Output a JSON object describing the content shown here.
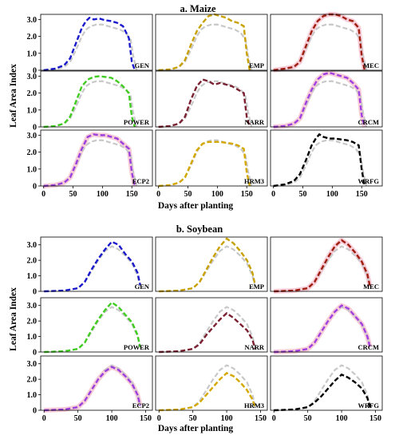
{
  "figure": {
    "panels": [
      {
        "title": "a. Maize",
        "ylabel": "Leaf Area Index",
        "xlabel": "Days after planting"
      },
      {
        "title": "b. Soybean",
        "ylabel": "Leaf Area Index",
        "xlabel": "Days after planting"
      }
    ]
  },
  "colors": {
    "baseline": "#c8c8c8",
    "GEN": "#1a1acc",
    "EMP": "#c8a000",
    "MEC": "#a01e10",
    "POWER": "#40cc20",
    "NARR": "#7a2030",
    "CRCM": "#a040e0",
    "ECP2": "#9a40dd",
    "HRM3": "#d4a800",
    "WRFG": "#000000",
    "band": "#f4b8c8"
  },
  "chart_data": [
    {
      "type": "line",
      "title": "a. Maize",
      "xlabel": "Days after planting",
      "ylabel": "Leaf Area Index",
      "xlim": [
        -5,
        185
      ],
      "ylim": [
        0,
        3.3
      ],
      "xticks": [
        "0",
        "50",
        "100",
        "150"
      ],
      "xtick_values": [
        0,
        50,
        100,
        150
      ],
      "yticks": [
        "0",
        "1.0",
        "2.0",
        "3.0"
      ],
      "ytick_values": [
        0,
        1,
        2,
        3
      ],
      "grid": false,
      "baseline": {
        "x": [
          0,
          20,
          35,
          45,
          55,
          65,
          72,
          80,
          90,
          100,
          110,
          120,
          130,
          140,
          148,
          152,
          158
        ],
        "y": [
          0,
          0.05,
          0.2,
          0.5,
          1.2,
          2.0,
          2.4,
          2.6,
          2.7,
          2.7,
          2.6,
          2.5,
          2.4,
          2.2,
          1.8,
          0.9,
          0
        ]
      },
      "series": [
        {
          "name": "GEN",
          "x": [
            0,
            20,
            35,
            45,
            55,
            65,
            72,
            78,
            85,
            95,
            105,
            115,
            125,
            135,
            145,
            150,
            155
          ],
          "y": [
            0,
            0.1,
            0.3,
            0.7,
            1.6,
            2.5,
            2.9,
            3.1,
            3.0,
            3.05,
            2.95,
            2.9,
            2.8,
            2.6,
            1.9,
            0.5,
            0
          ]
        },
        {
          "name": "EMP",
          "x": [
            0,
            20,
            35,
            45,
            55,
            65,
            75,
            85,
            95,
            105,
            115,
            125,
            135,
            145,
            150,
            155
          ],
          "y": [
            0,
            0.05,
            0.2,
            0.6,
            1.5,
            2.3,
            2.8,
            3.2,
            3.3,
            3.2,
            3.1,
            2.9,
            2.8,
            2.6,
            1.0,
            0
          ]
        },
        {
          "name": "MEC",
          "x": [
            0,
            20,
            35,
            45,
            55,
            65,
            75,
            85,
            95,
            105,
            115,
            125,
            135,
            145,
            150,
            155
          ],
          "y": [
            0,
            0.1,
            0.2,
            0.5,
            1.4,
            2.3,
            2.9,
            3.2,
            3.3,
            3.3,
            3.2,
            3.0,
            2.9,
            2.5,
            0.9,
            0
          ]
        },
        {
          "name": "POWER",
          "x": [
            0,
            20,
            35,
            45,
            55,
            65,
            75,
            85,
            95,
            105,
            115,
            125,
            135,
            145,
            150,
            155
          ],
          "y": [
            0,
            0.05,
            0.2,
            0.6,
            1.5,
            2.4,
            2.8,
            2.95,
            3.0,
            2.95,
            2.9,
            2.7,
            2.4,
            2.0,
            0.6,
            0
          ]
        },
        {
          "name": "NARR",
          "x": [
            0,
            20,
            35,
            45,
            55,
            65,
            75,
            85,
            95,
            105,
            115,
            125,
            135,
            145,
            150,
            155
          ],
          "y": [
            0,
            0.05,
            0.2,
            0.6,
            1.6,
            2.4,
            2.8,
            2.7,
            2.5,
            2.6,
            2.5,
            2.4,
            2.2,
            2.0,
            0.6,
            0
          ]
        },
        {
          "name": "CRCM",
          "x": [
            0,
            20,
            35,
            45,
            55,
            65,
            75,
            85,
            95,
            105,
            115,
            125,
            135,
            145,
            150,
            155
          ],
          "y": [
            0,
            0.05,
            0.2,
            0.5,
            1.4,
            2.2,
            2.8,
            3.1,
            3.2,
            3.1,
            3.0,
            2.9,
            2.6,
            2.2,
            0.7,
            0
          ]
        },
        {
          "name": "ECP2",
          "x": [
            0,
            20,
            35,
            45,
            55,
            65,
            75,
            85,
            95,
            105,
            115,
            125,
            135,
            145,
            150,
            155
          ],
          "y": [
            0,
            0.05,
            0.2,
            0.5,
            1.3,
            2.2,
            2.9,
            3.05,
            3.0,
            3.0,
            2.9,
            2.8,
            2.5,
            2.2,
            0.8,
            0
          ]
        },
        {
          "name": "HRM3",
          "x": [
            0,
            20,
            35,
            45,
            55,
            65,
            75,
            85,
            95,
            105,
            115,
            125,
            135,
            145,
            150,
            155
          ],
          "y": [
            0,
            0.05,
            0.2,
            0.5,
            1.3,
            2.1,
            2.5,
            2.6,
            2.6,
            2.6,
            2.55,
            2.5,
            2.4,
            2.2,
            0.8,
            0
          ]
        },
        {
          "name": "WRFG",
          "x": [
            0,
            20,
            35,
            45,
            55,
            65,
            72,
            78,
            85,
            95,
            105,
            115,
            125,
            135,
            145,
            150,
            155
          ],
          "y": [
            0,
            0.1,
            0.3,
            0.7,
            1.5,
            2.4,
            2.8,
            3.05,
            2.9,
            2.8,
            2.8,
            2.75,
            2.7,
            2.6,
            2.4,
            1.0,
            0
          ]
        }
      ]
    },
    {
      "type": "line",
      "title": "b. Soybean",
      "xlabel": "Days after planting",
      "ylabel": "Leaf Area Index",
      "xlim": [
        -5,
        160
      ],
      "ylim": [
        0,
        3.5
      ],
      "xticks": [
        "0",
        "50",
        "100",
        "150"
      ],
      "xtick_values": [
        0,
        50,
        100,
        150
      ],
      "yticks": [
        "0",
        "1.0",
        "2.0",
        "3.0"
      ],
      "ytick_values": [
        0,
        1,
        2,
        3
      ],
      "grid": false,
      "baseline": {
        "x": [
          0,
          30,
          50,
          60,
          70,
          80,
          90,
          100,
          110,
          120,
          130,
          138,
          142
        ],
        "y": [
          0,
          0.05,
          0.2,
          0.6,
          1.3,
          2.0,
          2.6,
          2.9,
          2.7,
          2.3,
          1.8,
          1.0,
          0.3
        ]
      },
      "series": [
        {
          "name": "GEN",
          "x": [
            0,
            30,
            50,
            60,
            70,
            80,
            90,
            100,
            110,
            120,
            130,
            138,
            142
          ],
          "y": [
            0,
            0.05,
            0.2,
            0.6,
            1.4,
            2.1,
            2.7,
            3.2,
            3.0,
            2.4,
            1.9,
            1.2,
            0.4
          ]
        },
        {
          "name": "EMP",
          "x": [
            0,
            30,
            50,
            60,
            70,
            80,
            90,
            100,
            110,
            120,
            130,
            138,
            142
          ],
          "y": [
            0,
            0.05,
            0.2,
            0.6,
            1.4,
            2.2,
            2.9,
            3.4,
            3.1,
            2.6,
            2.0,
            1.2,
            0.4
          ]
        },
        {
          "name": "MEC",
          "x": [
            0,
            30,
            50,
            60,
            70,
            80,
            90,
            100,
            110,
            120,
            130,
            138,
            142
          ],
          "y": [
            0,
            0.05,
            0.2,
            0.6,
            1.4,
            2.2,
            2.9,
            3.3,
            3.0,
            2.5,
            1.9,
            1.1,
            0.3
          ]
        },
        {
          "name": "POWER",
          "x": [
            0,
            30,
            50,
            60,
            70,
            80,
            90,
            100,
            110,
            120,
            130,
            138,
            142
          ],
          "y": [
            0,
            0.05,
            0.2,
            0.6,
            1.4,
            2.1,
            2.7,
            3.2,
            2.9,
            2.4,
            1.9,
            1.1,
            0.3
          ]
        },
        {
          "name": "NARR",
          "x": [
            0,
            30,
            50,
            60,
            70,
            80,
            90,
            100,
            110,
            120,
            130,
            138,
            142
          ],
          "y": [
            0,
            0.05,
            0.2,
            0.5,
            1.1,
            1.6,
            2.1,
            2.5,
            2.2,
            1.8,
            1.4,
            0.8,
            0.2
          ]
        },
        {
          "name": "CRCM",
          "x": [
            0,
            30,
            50,
            60,
            70,
            80,
            90,
            100,
            110,
            120,
            130,
            138,
            142
          ],
          "y": [
            0,
            0.05,
            0.2,
            0.6,
            1.3,
            2.0,
            2.6,
            3.0,
            2.8,
            2.3,
            1.8,
            1.0,
            0.3
          ]
        },
        {
          "name": "ECP2",
          "x": [
            0,
            30,
            50,
            60,
            70,
            80,
            90,
            100,
            110,
            120,
            130,
            138,
            142
          ],
          "y": [
            0,
            0.05,
            0.2,
            0.6,
            1.3,
            2.0,
            2.5,
            2.8,
            2.6,
            2.2,
            1.7,
            1.0,
            0.3
          ]
        },
        {
          "name": "HRM3",
          "x": [
            0,
            30,
            50,
            60,
            70,
            80,
            90,
            100,
            110,
            120,
            130,
            138,
            142
          ],
          "y": [
            0,
            0.05,
            0.2,
            0.5,
            1.0,
            1.5,
            2.0,
            2.4,
            2.2,
            1.8,
            1.3,
            0.7,
            0.2
          ]
        },
        {
          "name": "WRFG",
          "x": [
            0,
            30,
            50,
            60,
            70,
            80,
            90,
            100,
            110,
            120,
            130,
            138,
            142
          ],
          "y": [
            0,
            0.05,
            0.2,
            0.5,
            0.9,
            1.4,
            1.9,
            2.3,
            2.1,
            1.8,
            1.4,
            0.8,
            0.2
          ]
        }
      ]
    }
  ]
}
